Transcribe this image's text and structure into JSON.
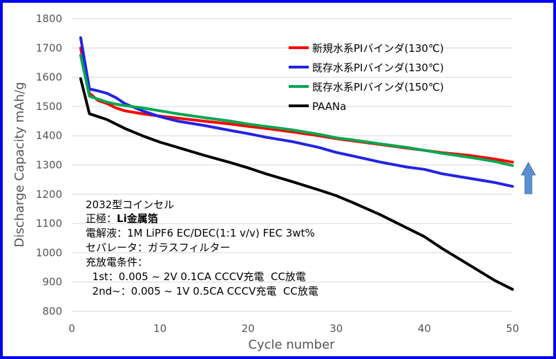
{
  "chart_data": {
    "type": "line",
    "xlabel": "Cycle number",
    "ylabel": "Discharge Capacity mAh/g",
    "xlim": [
      0,
      50
    ],
    "ylim": [
      800,
      1800
    ],
    "xticks": [
      0,
      10,
      20,
      30,
      40,
      50
    ],
    "yticks": [
      800,
      900,
      1000,
      1100,
      1200,
      1300,
      1400,
      1500,
      1600,
      1700,
      1800
    ],
    "grid": "horizontal",
    "legend_position": "top-right",
    "series": [
      {
        "name": "新規水系PIバインダ(130℃)",
        "color": "#ff0000",
        "points": [
          [
            1,
            1700
          ],
          [
            2,
            1545
          ],
          [
            3,
            1520
          ],
          [
            4,
            1510
          ],
          [
            5,
            1495
          ],
          [
            6,
            1485
          ],
          [
            8,
            1475
          ],
          [
            10,
            1467
          ],
          [
            12,
            1460
          ],
          [
            15,
            1450
          ],
          [
            18,
            1440
          ],
          [
            20,
            1432
          ],
          [
            22,
            1425
          ],
          [
            25,
            1413
          ],
          [
            28,
            1400
          ],
          [
            30,
            1390
          ],
          [
            32,
            1382
          ],
          [
            35,
            1370
          ],
          [
            38,
            1358
          ],
          [
            40,
            1350
          ],
          [
            42,
            1342
          ],
          [
            45,
            1333
          ],
          [
            48,
            1320
          ],
          [
            50,
            1310
          ]
        ]
      },
      {
        "name": "既存水系PIバインダ(130℃)",
        "color": "#2323e6",
        "points": [
          [
            1,
            1735
          ],
          [
            2,
            1560
          ],
          [
            3,
            1553
          ],
          [
            4,
            1545
          ],
          [
            5,
            1530
          ],
          [
            6,
            1510
          ],
          [
            8,
            1485
          ],
          [
            10,
            1465
          ],
          [
            12,
            1450
          ],
          [
            15,
            1435
          ],
          [
            18,
            1418
          ],
          [
            20,
            1407
          ],
          [
            22,
            1395
          ],
          [
            25,
            1380
          ],
          [
            28,
            1360
          ],
          [
            30,
            1343
          ],
          [
            32,
            1330
          ],
          [
            35,
            1310
          ],
          [
            38,
            1293
          ],
          [
            40,
            1285
          ],
          [
            42,
            1270
          ],
          [
            45,
            1255
          ],
          [
            48,
            1240
          ],
          [
            50,
            1227
          ]
        ]
      },
      {
        "name": "既存水系PIバインダ(150℃)",
        "color": "#00a650",
        "points": [
          [
            1,
            1675
          ],
          [
            2,
            1535
          ],
          [
            3,
            1525
          ],
          [
            4,
            1515
          ],
          [
            5,
            1508
          ],
          [
            6,
            1503
          ],
          [
            8,
            1495
          ],
          [
            10,
            1485
          ],
          [
            12,
            1475
          ],
          [
            15,
            1462
          ],
          [
            18,
            1450
          ],
          [
            20,
            1440
          ],
          [
            22,
            1432
          ],
          [
            25,
            1420
          ],
          [
            28,
            1405
          ],
          [
            30,
            1393
          ],
          [
            32,
            1385
          ],
          [
            35,
            1372
          ],
          [
            38,
            1360
          ],
          [
            40,
            1350
          ],
          [
            42,
            1340
          ],
          [
            45,
            1327
          ],
          [
            48,
            1312
          ],
          [
            50,
            1298
          ]
        ]
      },
      {
        "name": "PAANa",
        "color": "#000000",
        "points": [
          [
            1,
            1595
          ],
          [
            2,
            1475
          ],
          [
            3,
            1465
          ],
          [
            4,
            1455
          ],
          [
            5,
            1440
          ],
          [
            6,
            1425
          ],
          [
            8,
            1400
          ],
          [
            10,
            1378
          ],
          [
            12,
            1360
          ],
          [
            15,
            1333
          ],
          [
            18,
            1308
          ],
          [
            20,
            1290
          ],
          [
            22,
            1270
          ],
          [
            25,
            1243
          ],
          [
            28,
            1215
          ],
          [
            30,
            1195
          ],
          [
            32,
            1170
          ],
          [
            35,
            1130
          ],
          [
            38,
            1085
          ],
          [
            40,
            1055
          ],
          [
            42,
            1015
          ],
          [
            45,
            960
          ],
          [
            48,
            905
          ],
          [
            50,
            875
          ]
        ]
      }
    ],
    "annotations": {
      "arrow": "up",
      "arrow_color": "#5b8fcf"
    }
  },
  "notes": {
    "cell_type": "2032型コインセル",
    "positive_label": "正極：",
    "positive_value": "Li金属箔",
    "electrolyte": "電解液：1M LiPF6 EC/DEC(1:1 v/v) FEC 3wt%",
    "separator": "セパレータ：ガラスフィルター",
    "conditions_title": "充放電条件：",
    "condition_1": "  1st：0.005 ~ 2V 0.1CA CCCV充電  CC放電",
    "condition_2": "  2nd~：0.005 ~ 1V 0.5CA CCCV充電  CC放電"
  }
}
